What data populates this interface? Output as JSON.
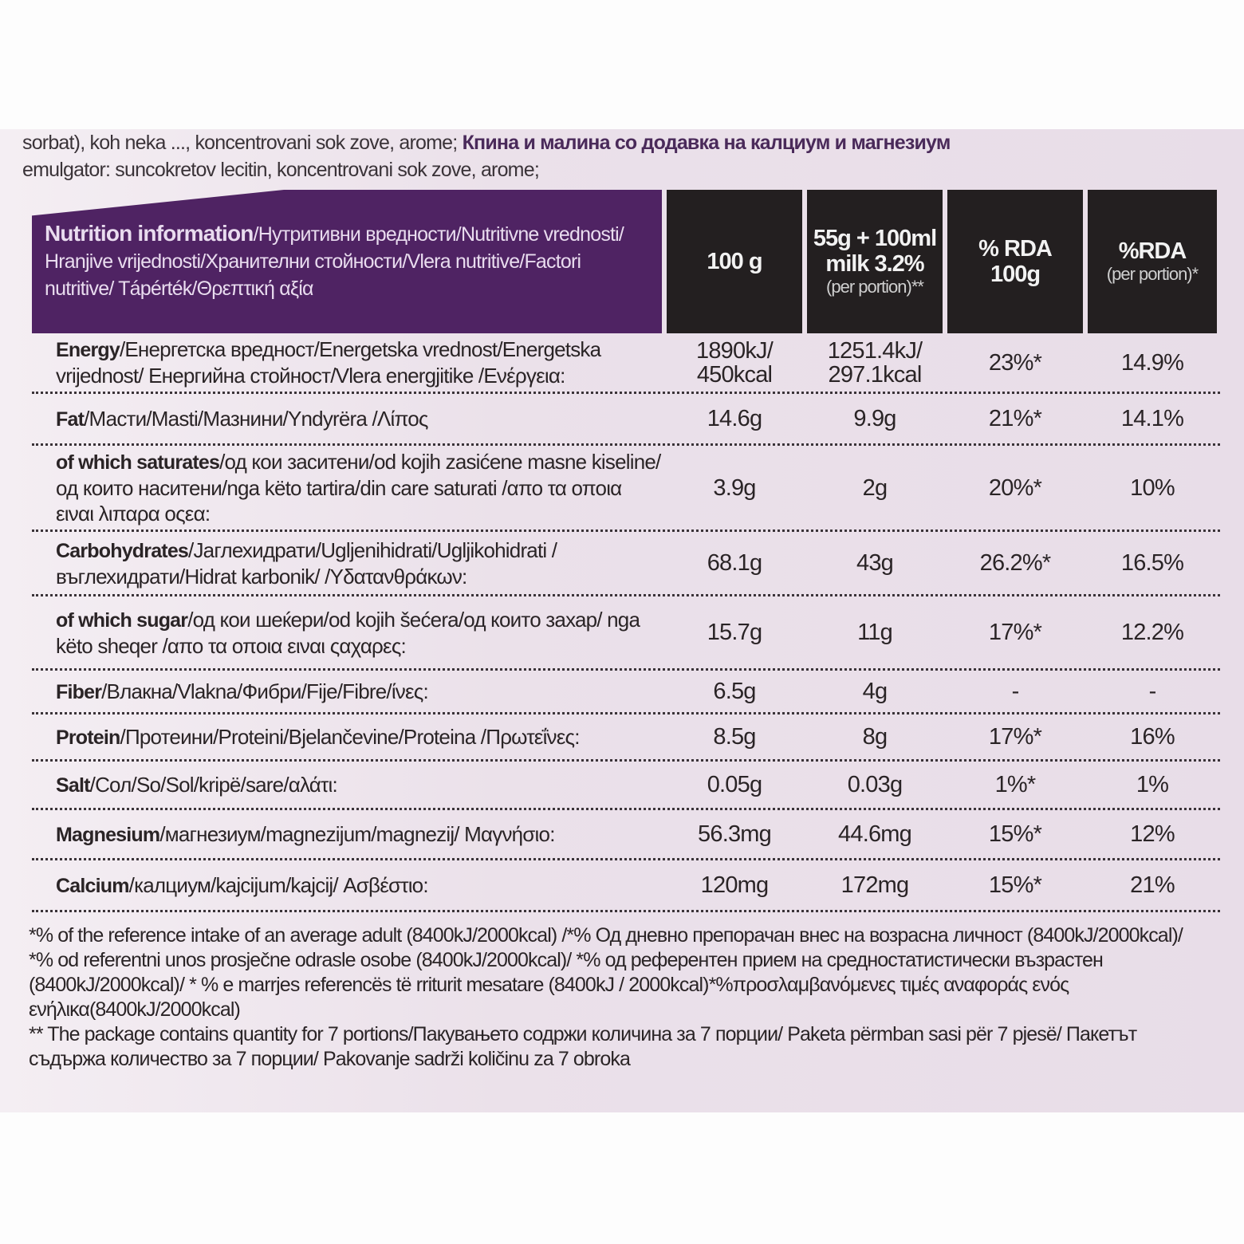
{
  "intro": {
    "line1": "sorbat), koh neka ..., koncentrovani sok zove, arome;",
    "line1_bold": "Кпина и малина со додавка на калциум и магнезиум",
    "line2": "emulgator: suncokretov lecitin, koncentrovani sok zove, arome;"
  },
  "header": {
    "title_bold": "Nutrition information",
    "title_rest": "/Нутритивни вредности/Nutritivne vrednosti/ Hranjive vrijednosti/Хранителни стойности/Vlera nutritive/Factori nutritive/ Tápérték/Θρεπτική αξία",
    "col1": "100 g",
    "col2_line1": "55g + 100ml",
    "col2_line2": "milk 3.2%",
    "col2_note": "(per portion)**",
    "col3_line1": "% RDA",
    "col3_line2": "100g",
    "col4_line1": "%RDA",
    "col4_note": "(per portion)*"
  },
  "rows": [
    {
      "bold": "Energy",
      "rest": "/Енергетска вредност/Energetska vrednost/Energetska vrijednost/ Енергийна стойност/Vlera energjitike /Ενέργεια:",
      "v100": "1890kJ/ 450kcal",
      "vportion": "1251.4kJ/ 297.1kcal",
      "rda100": "23%*",
      "rdaportion": "14.9%"
    },
    {
      "bold": "Fat",
      "rest": "/Масти/Masti/Мазнини/Yndyrëra /Λίπος",
      "v100": "14.6g",
      "vportion": "9.9g",
      "rda100": "21%*",
      "rdaportion": "14.1%"
    },
    {
      "bold": "of which saturates",
      "rest": "/од кои заситени/od kojih zasićene masne kiseline/од които наситени/nga këto tartira/din care saturati /απο τα οποια ειναι λιπαρα οςεα:",
      "v100": "3.9g",
      "vportion": "2g",
      "rda100": "20%*",
      "rdaportion": "10%"
    },
    {
      "bold": "Carbohydrates",
      "rest": "/Јаглехидрати/Ugljenihidrati/Ugljikohidrati /въглехидрати/Hidrat karbonik/ /Υδατανθράκων:",
      "v100": "68.1g",
      "vportion": "43g",
      "rda100": "26.2%*",
      "rdaportion": "16.5%"
    },
    {
      "bold": "of which sugar",
      "rest": "/од кои шеќери/od kojih šećera/од които захар/ nga këto sheqer /απο τα οποια ειναι ςαχαρες:",
      "v100": "15.7g",
      "vportion": "11g",
      "rda100": "17%*",
      "rdaportion": "12.2%"
    },
    {
      "bold": "Fiber",
      "rest": "/Влакна/Vlakna/Фибри/Fije/Fibre/ίνες:",
      "v100": "6.5g",
      "vportion": "4g",
      "rda100": "-",
      "rdaportion": "-"
    },
    {
      "bold": "Protein",
      "rest": "/Протеини/Proteini/Bjelančevine/Proteina /Πρωτεΐνες:",
      "v100": "8.5g",
      "vportion": "8g",
      "rda100": "17%*",
      "rdaportion": "16%"
    },
    {
      "bold": "Salt",
      "rest": "/Сол/So/Sol/kripë/sare/αλάτι:",
      "v100": "0.05g",
      "vportion": "0.03g",
      "rda100": "1%*",
      "rdaportion": "1%"
    },
    {
      "bold": "Magnesium",
      "rest": "/магнезиум/magnezijum/magnezij/ Μαγνήσιο:",
      "v100": "56.3mg",
      "vportion": "44.6mg",
      "rda100": "15%*",
      "rdaportion": "12%"
    },
    {
      "bold": "Calcium",
      "rest": "/калциум/kajcijum/kajcij/ Ασβέστιο:",
      "v100": "120mg",
      "vportion": "172mg",
      "rda100": "15%*",
      "rdaportion": "21%"
    }
  ],
  "footnotes": [
    "*% of the reference intake of an average adult (8400kJ/2000kcal) /*% Од дневно препорачан внес на возрасна личност (8400kJ/2000kcal)/",
    "*% od referentni unos prosječne odrasle osobe (8400kJ/2000kcal)/ *% од референтен прием на средностатистически възрастен",
    "(8400kJ/2000kcal)/ * % e marrjes referencës të rriturit mesatare (8400kJ / 2000kcal)*%προσλαμβανόμενες τιμές αναφοράς ενός",
    "ενήλικα(8400kJ/2000kcal)",
    "** The package contains quantity for 7 portions/Пакувањето содржи количина за 7  порции/ Paketa përmban sasi për 7 pjesë/ Пакетът",
    "съдържа количество за 7 порции/ Pakovanje sadrži količinu za 7 obroka"
  ],
  "colors": {
    "header_purple": "#4f2363",
    "header_black": "#231f20",
    "label_bg": "#ebe1ea"
  }
}
